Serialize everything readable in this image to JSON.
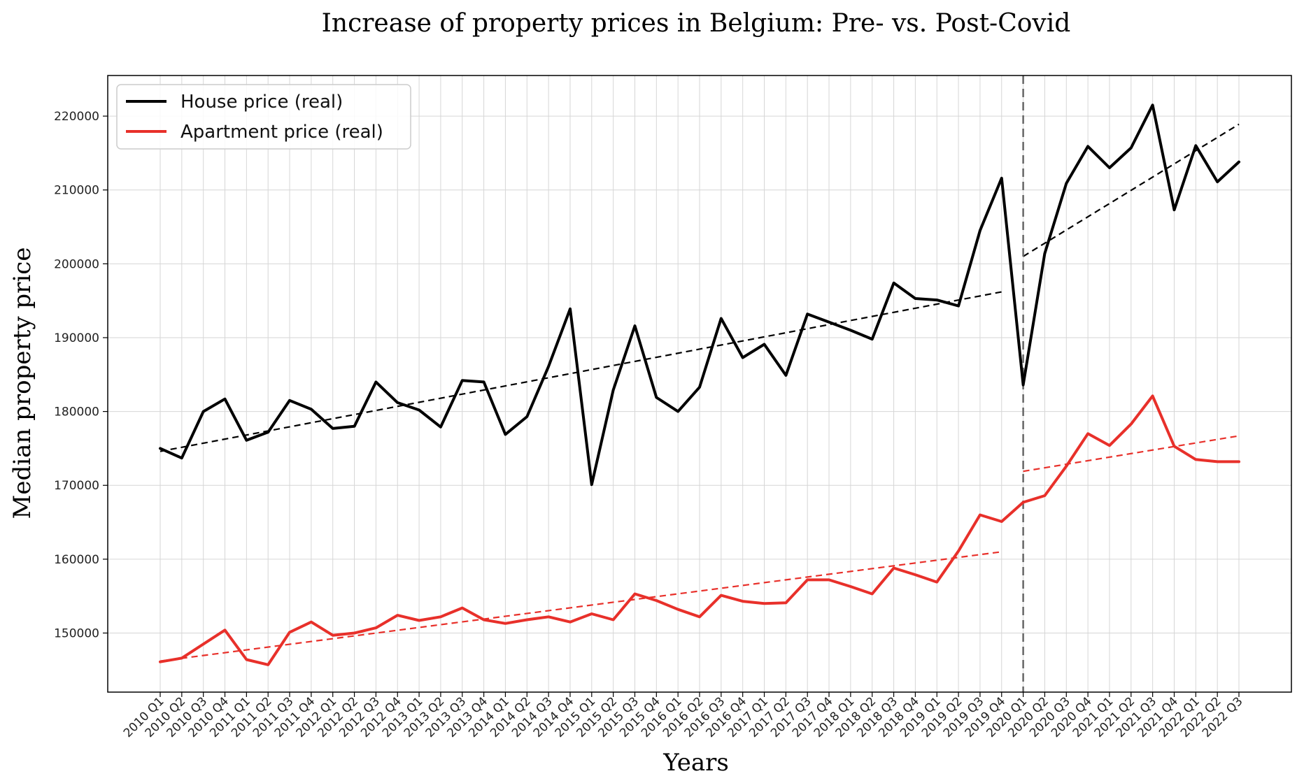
{
  "chart_data": {
    "type": "line",
    "title": "Increase of property prices in Belgium: Pre- vs. Post-Covid",
    "xlabel": "Years",
    "ylabel": "Median property price",
    "ylim": [
      142000,
      225500
    ],
    "yticks": [
      150000,
      160000,
      170000,
      180000,
      190000,
      200000,
      210000,
      220000
    ],
    "grid": true,
    "legend_position": "top-left",
    "covid_marker_category": "2020 Q1",
    "categories": [
      "2010 Q1",
      "2010 Q2",
      "2010 Q3",
      "2010 Q4",
      "2011 Q1",
      "2011 Q2",
      "2011 Q3",
      "2011 Q4",
      "2012 Q1",
      "2012 Q2",
      "2012 Q3",
      "2012 Q4",
      "2013 Q1",
      "2013 Q2",
      "2013 Q3",
      "2013 Q4",
      "2014 Q1",
      "2014 Q2",
      "2014 Q3",
      "2014 Q4",
      "2015 Q1",
      "2015 Q2",
      "2015 Q3",
      "2015 Q4",
      "2016 Q1",
      "2016 Q2",
      "2016 Q3",
      "2016 Q4",
      "2017 Q1",
      "2017 Q2",
      "2017 Q3",
      "2017 Q4",
      "2018 Q1",
      "2018 Q2",
      "2018 Q3",
      "2018 Q4",
      "2019 Q1",
      "2019 Q2",
      "2019 Q3",
      "2019 Q4",
      "2020 Q1",
      "2020 Q2",
      "2020 Q3",
      "2020 Q4",
      "2021 Q1",
      "2021 Q2",
      "2021 Q3",
      "2021 Q4",
      "2022 Q1",
      "2022 Q2",
      "2022 Q3"
    ],
    "series": [
      {
        "name": "House price (real)",
        "color": "#000000",
        "values": [
          175000,
          173700,
          180000,
          181700,
          176100,
          177200,
          181500,
          180300,
          177700,
          178000,
          184000,
          181200,
          180200,
          177900,
          184200,
          184000,
          176900,
          179300,
          186100,
          193900,
          170100,
          182900,
          191600,
          181900,
          180000,
          183300,
          192600,
          187300,
          189100,
          184900,
          193200,
          192100,
          191000,
          189800,
          197400,
          195300,
          195100,
          194300,
          204500,
          211600,
          183600,
          201400,
          210900,
          215900,
          213000,
          215700,
          221500,
          207300,
          216000,
          211100,
          213800
        ]
      },
      {
        "name": "Apartment price (real)",
        "color": "#e8302a",
        "values": [
          146100,
          146600,
          148500,
          150400,
          146400,
          145700,
          150100,
          151500,
          149700,
          150000,
          150700,
          152400,
          151700,
          152200,
          153400,
          151800,
          151300,
          151800,
          152200,
          151500,
          152600,
          151800,
          155300,
          154400,
          153200,
          152200,
          155100,
          154300,
          154000,
          154100,
          157200,
          157200,
          156300,
          155300,
          158800,
          157900,
          156900,
          161100,
          166000,
          165100,
          167700,
          168600,
          172600,
          177000,
          175400,
          178300,
          182100,
          175300,
          173500,
          173200,
          173200
        ]
      }
    ],
    "trendlines": [
      {
        "series": "House price (real)",
        "period": "pre-covid",
        "from_category": "2010 Q1",
        "to_category": "2019 Q4",
        "start_value": 174600,
        "end_value": 196200,
        "color": "#000000",
        "style": "dashed"
      },
      {
        "series": "House price (real)",
        "period": "post-covid",
        "from_category": "2020 Q1",
        "to_category": "2022 Q3",
        "start_value": 201000,
        "end_value": 218900,
        "color": "#000000",
        "style": "dashed"
      },
      {
        "series": "Apartment price (real)",
        "period": "pre-covid",
        "from_category": "2010 Q1",
        "to_category": "2019 Q4",
        "start_value": 146200,
        "end_value": 161000,
        "color": "#e8302a",
        "style": "dashed"
      },
      {
        "series": "Apartment price (real)",
        "period": "post-covid",
        "from_category": "2020 Q1",
        "to_category": "2022 Q3",
        "start_value": 171900,
        "end_value": 176700,
        "color": "#e8302a",
        "style": "dashed"
      }
    ]
  }
}
